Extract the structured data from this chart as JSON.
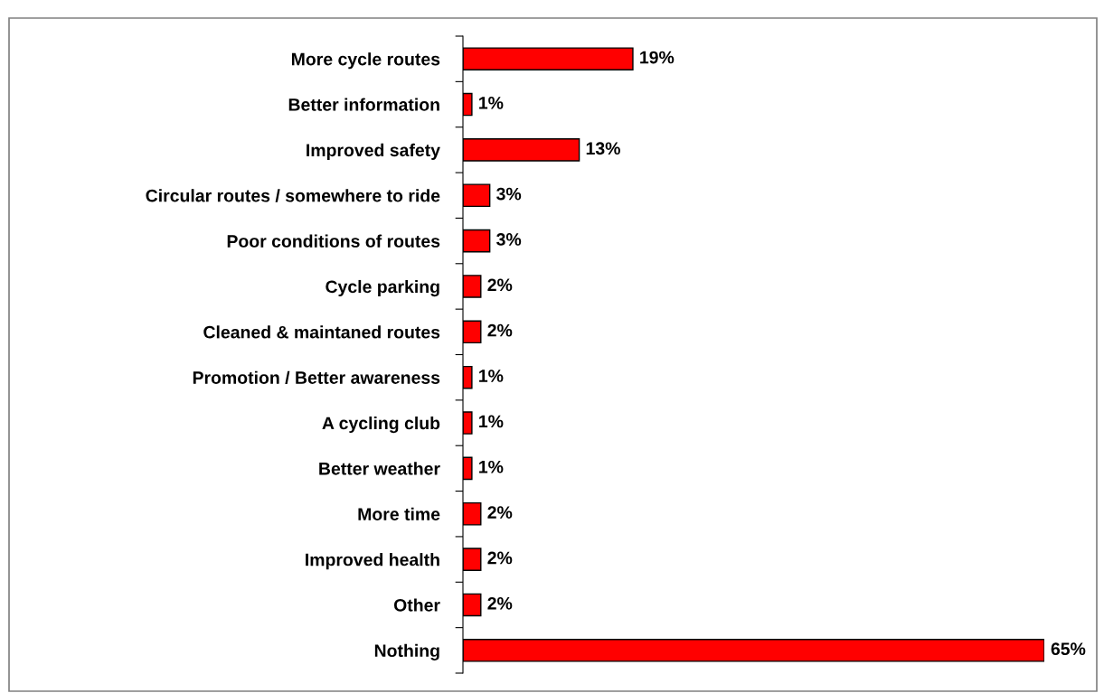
{
  "chart_data": {
    "type": "bar",
    "orientation": "horizontal",
    "categories": [
      "More cycle routes",
      "Better information",
      "Improved safety",
      "Circular routes / somewhere to ride",
      "Poor conditions of routes",
      "Cycle parking",
      "Cleaned & maintaned routes",
      "Promotion / Better awareness",
      "A cycling club",
      "Better weather",
      "More time",
      "Improved health",
      "Other",
      "Nothing"
    ],
    "values": [
      19,
      1,
      13,
      3,
      3,
      2,
      2,
      1,
      1,
      1,
      2,
      2,
      2,
      65
    ],
    "value_labels": [
      "19%",
      "1%",
      "13%",
      "3%",
      "3%",
      "2%",
      "2%",
      "1%",
      "1%",
      "1%",
      "2%",
      "2%",
      "2%",
      "65%"
    ],
    "color": "#ff0000",
    "grid": false,
    "legend": false
  }
}
